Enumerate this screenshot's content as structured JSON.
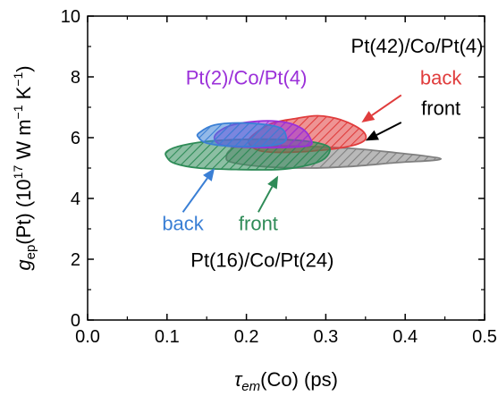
{
  "chart_data": {
    "type": "area",
    "xlabel_main": "τ",
    "xlabel_sub": "em",
    "xlabel_rest": "(Co) (ps)",
    "ylabel_main": "g",
    "ylabel_sub": "ep",
    "ylabel_rest1": "(Pt) (10",
    "ylabel_sup1": "17",
    "ylabel_rest2": " W m",
    "ylabel_sup2": "−1",
    "ylabel_rest3": " K",
    "ylabel_sup3": "−1",
    "ylabel_rest4": ")",
    "xlim": [
      0.0,
      0.5
    ],
    "ylim": [
      0,
      10
    ],
    "xticks": [
      "0.0",
      "0.1",
      "0.2",
      "0.3",
      "0.4",
      "0.5"
    ],
    "yticks": [
      "0",
      "2",
      "4",
      "6",
      "8",
      "10"
    ],
    "grid": false,
    "series": [
      {
        "name": "front",
        "sample": "Pt(42)/Co/Pt(4)",
        "color": "#808080",
        "polygon": [
          [
            0.19,
            5.7
          ],
          [
            0.26,
            5.72
          ],
          [
            0.33,
            5.65
          ],
          [
            0.39,
            5.5
          ],
          [
            0.43,
            5.38
          ],
          [
            0.445,
            5.3
          ],
          [
            0.43,
            5.24
          ],
          [
            0.39,
            5.18
          ],
          [
            0.33,
            5.05
          ],
          [
            0.28,
            5.0
          ],
          [
            0.22,
            5.05
          ],
          [
            0.18,
            5.2
          ],
          [
            0.175,
            5.4
          ],
          [
            0.18,
            5.6
          ]
        ]
      },
      {
        "name": "back",
        "sample": "Pt(42)/Co/Pt(4)",
        "color": "#e03c3c",
        "polygon": [
          [
            0.205,
            6.0
          ],
          [
            0.23,
            6.45
          ],
          [
            0.26,
            6.62
          ],
          [
            0.29,
            6.72
          ],
          [
            0.32,
            6.58
          ],
          [
            0.345,
            6.25
          ],
          [
            0.35,
            5.95
          ],
          [
            0.335,
            5.75
          ],
          [
            0.3,
            5.6
          ],
          [
            0.255,
            5.52
          ],
          [
            0.22,
            5.55
          ],
          [
            0.205,
            5.75
          ]
        ]
      },
      {
        "name": "front",
        "sample": "Pt(16)/Co/Pt(24)",
        "color": "#2e8b57",
        "polygon": [
          [
            0.1,
            5.55
          ],
          [
            0.12,
            5.75
          ],
          [
            0.16,
            5.9
          ],
          [
            0.22,
            5.95
          ],
          [
            0.27,
            5.9
          ],
          [
            0.3,
            5.75
          ],
          [
            0.305,
            5.55
          ],
          [
            0.295,
            5.25
          ],
          [
            0.27,
            5.05
          ],
          [
            0.24,
            4.95
          ],
          [
            0.19,
            4.95
          ],
          [
            0.14,
            5.0
          ],
          [
            0.11,
            5.15
          ],
          [
            0.1,
            5.35
          ]
        ]
      },
      {
        "name": "",
        "sample": "Pt(2)/Co/Pt(4)",
        "color": "#9b30d9",
        "polygon": [
          [
            0.16,
            6.05
          ],
          [
            0.18,
            6.4
          ],
          [
            0.22,
            6.55
          ],
          [
            0.25,
            6.5
          ],
          [
            0.27,
            6.3
          ],
          [
            0.28,
            6.0
          ],
          [
            0.28,
            5.75
          ],
          [
            0.25,
            5.68
          ],
          [
            0.21,
            5.68
          ],
          [
            0.17,
            5.75
          ]
        ]
      },
      {
        "name": "back",
        "sample": "Pt(16)/Co/Pt(24)",
        "color": "#3a7fd5",
        "polygon": [
          [
            0.14,
            6.15
          ],
          [
            0.16,
            6.42
          ],
          [
            0.2,
            6.48
          ],
          [
            0.24,
            6.35
          ],
          [
            0.25,
            6.05
          ],
          [
            0.245,
            5.82
          ],
          [
            0.22,
            5.72
          ],
          [
            0.18,
            5.72
          ],
          [
            0.15,
            5.82
          ],
          [
            0.14,
            6.0
          ]
        ]
      }
    ],
    "annotations": [
      {
        "text": "Pt(42)/Co/Pt(4)",
        "color": "#000000",
        "x": 0.415,
        "y": 8.8,
        "anchor": "middle"
      },
      {
        "text": "back",
        "color": "#e03c3c",
        "x": 0.445,
        "y": 7.75,
        "anchor": "middle"
      },
      {
        "text": "front",
        "color": "#000000",
        "x": 0.445,
        "y": 6.75,
        "anchor": "middle"
      },
      {
        "text": "Pt(2)/Co/Pt(4)",
        "color": "#9b30d9",
        "x": 0.2,
        "y": 7.75,
        "anchor": "middle"
      },
      {
        "text": "back",
        "color": "#3a7fd5",
        "x": 0.12,
        "y": 2.95,
        "anchor": "middle"
      },
      {
        "text": "front",
        "color": "#2e8b57",
        "x": 0.215,
        "y": 2.95,
        "anchor": "middle"
      },
      {
        "text": "Pt(16)/Co/Pt(24)",
        "color": "#000000",
        "x": 0.22,
        "y": 1.75,
        "anchor": "middle"
      }
    ],
    "arrows": [
      {
        "color": "#e03c3c",
        "from": [
          0.395,
          7.4
        ],
        "to": [
          0.345,
          6.5
        ]
      },
      {
        "color": "#000000",
        "from": [
          0.395,
          6.5
        ],
        "to": [
          0.35,
          5.9
        ]
      },
      {
        "color": "#3a7fd5",
        "from": [
          0.12,
          3.55
        ],
        "to": [
          0.16,
          5.0
        ]
      },
      {
        "color": "#2e8b57",
        "from": [
          0.215,
          3.55
        ],
        "to": [
          0.24,
          4.75
        ]
      }
    ]
  }
}
